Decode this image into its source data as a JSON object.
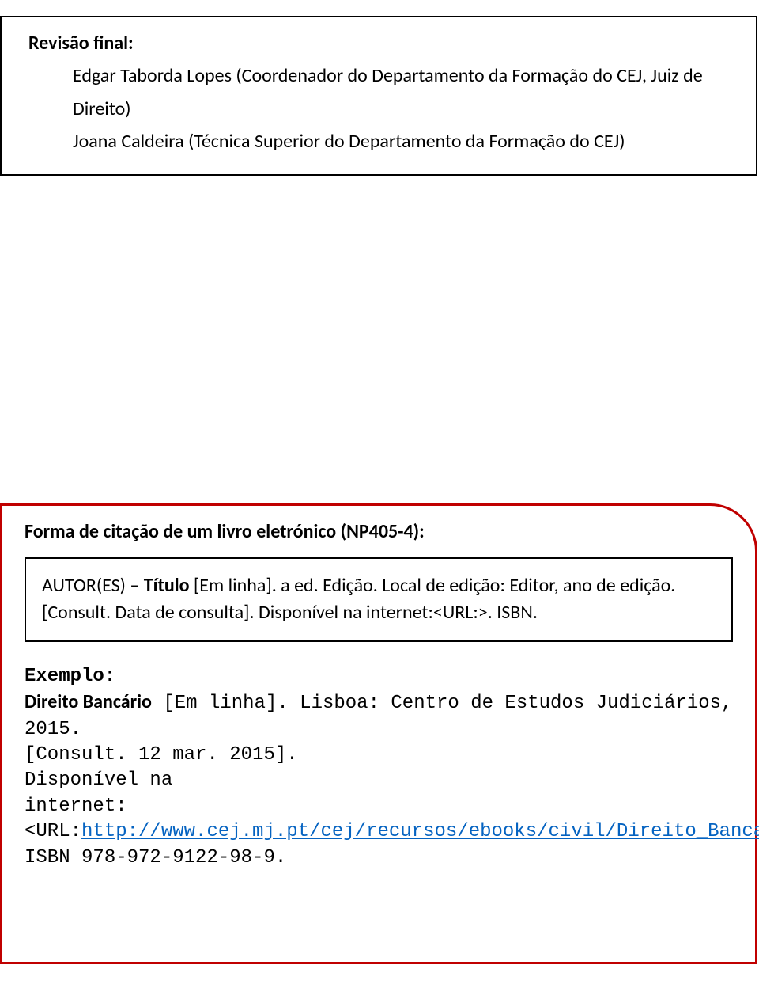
{
  "box1": {
    "heading": "Revisão final:",
    "line1": "Edgar Taborda Lopes (Coordenador do Departamento da Formação do CEJ, Juiz de",
    "line2": "Direito)",
    "line3": "Joana Caldeira (Técnica Superior do Departamento da Formação do CEJ)"
  },
  "citation": {
    "title": "Forma de citação de um livro eletrónico (NP405-4):",
    "inner": {
      "author_label": "AUTOR(ES) – ",
      "titulo_bold": "Título",
      "after_titulo": " [Em linha]. a ed. Edição. Local de edição: Editor, ano de edição.",
      "line2": "[Consult. Data de consulta]. Disponível na internet:<URL:>. ISBN."
    },
    "example": {
      "label": "Exemplo:",
      "work_bold": "Direito Bancário",
      "after_work": " [Em linha]. Lisboa: Centro de Estudos Judiciários, 2015.",
      "consult": "[Consult. 12 mar. 2015].",
      "disp": "Disponível na",
      "url_prefix": "internet:<URL:",
      "url_text": "http://www.cej.mj.pt/cej/recursos/ebooks/civil/Direito_Bancario.pdf",
      "url_suffix": ".",
      "isbn": "ISBN 978-972-9122-98-9."
    }
  }
}
